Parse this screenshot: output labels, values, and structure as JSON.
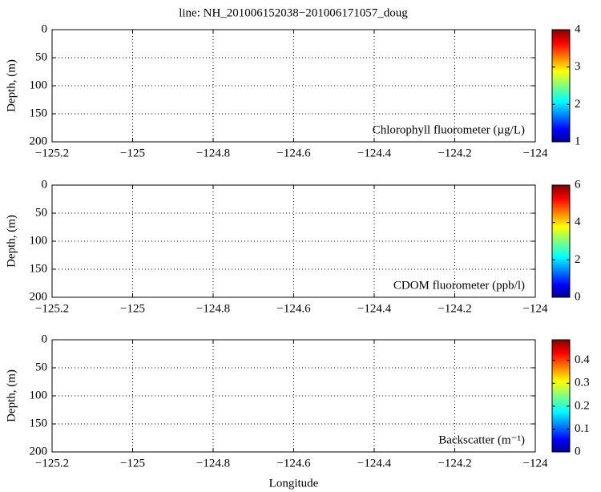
{
  "title": "line: NH_201006152038−201006171057_doug",
  "chart_data": [
    {
      "type": "heatmap",
      "annotation": "Chlorophyll fluorometer (µg/L)",
      "ylabel": "Depth, (m)",
      "xlim": [
        -125.2,
        -124
      ],
      "xticks": [
        {
          "value": -125.2,
          "label": "−125.2"
        },
        {
          "value": -125,
          "label": "−125"
        },
        {
          "value": -124.8,
          "label": "−124.8"
        },
        {
          "value": -124.6,
          "label": "−124.6"
        },
        {
          "value": -124.4,
          "label": "−124.4"
        },
        {
          "value": -124.2,
          "label": "−124.2"
        },
        {
          "value": -124,
          "label": "−124"
        }
      ],
      "ylim": [
        200,
        0
      ],
      "yticks": [
        0,
        50,
        100,
        150,
        200
      ],
      "grid": true,
      "colormap": "jet",
      "clim": [
        1,
        4
      ],
      "cticks": [
        1,
        2,
        3,
        4
      ]
    },
    {
      "type": "heatmap",
      "annotation": "CDOM fluorometer (ppb/l)",
      "ylabel": "Depth, (m)",
      "xlim": [
        -125.2,
        -124
      ],
      "xticks": [
        {
          "value": -125.2,
          "label": "−125.2"
        },
        {
          "value": -125,
          "label": "−125"
        },
        {
          "value": -124.8,
          "label": "−124.8"
        },
        {
          "value": -124.6,
          "label": "−124.6"
        },
        {
          "value": -124.4,
          "label": "−124.4"
        },
        {
          "value": -124.2,
          "label": "−124.2"
        },
        {
          "value": -124,
          "label": "−124"
        }
      ],
      "ylim": [
        200,
        0
      ],
      "yticks": [
        0,
        50,
        100,
        150,
        200
      ],
      "grid": true,
      "colormap": "jet",
      "clim": [
        0,
        6
      ],
      "cticks": [
        0,
        2,
        4,
        6
      ]
    },
    {
      "type": "heatmap",
      "annotation": "Backscatter (m⁻¹)",
      "ylabel": "Depth, (m)",
      "xlabel": "Longitude",
      "xlim": [
        -125.2,
        -124
      ],
      "xticks": [
        {
          "value": -125.2,
          "label": "−125.2"
        },
        {
          "value": -125,
          "label": "−125"
        },
        {
          "value": -124.8,
          "label": "−124.8"
        },
        {
          "value": -124.6,
          "label": "−124.6"
        },
        {
          "value": -124.4,
          "label": "−124.4"
        },
        {
          "value": -124.2,
          "label": "−124.2"
        },
        {
          "value": -124,
          "label": "−124"
        }
      ],
      "ylim": [
        200,
        0
      ],
      "yticks": [
        0,
        50,
        100,
        150,
        200
      ],
      "grid": true,
      "colormap": "jet",
      "clim": [
        0,
        0.49
      ],
      "cticks": [
        0,
        0.1,
        0.2,
        0.3,
        0.4
      ]
    }
  ]
}
